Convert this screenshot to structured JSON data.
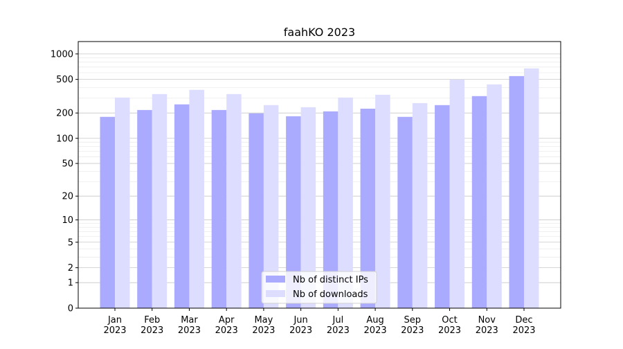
{
  "chart_data": {
    "type": "bar",
    "title": "faahKO 2023",
    "xlabel": "",
    "ylabel": "",
    "yscale": "log(1+y)",
    "ylim": [
      0,
      1400
    ],
    "yticks": [
      0,
      1,
      2,
      5,
      10,
      20,
      50,
      100,
      200,
      500,
      1000
    ],
    "grid": true,
    "legend_position": "lower center",
    "categories": [
      "Jan\n2023",
      "Feb\n2023",
      "Mar\n2023",
      "Apr\n2023",
      "May\n2023",
      "Jun\n2023",
      "Jul\n2023",
      "Aug\n2023",
      "Sep\n2023",
      "Oct\n2023",
      "Nov\n2023",
      "Dec\n2023"
    ],
    "series": [
      {
        "name": "Nb of distinct IPs",
        "color": "#aaaaff",
        "values": [
          180,
          217,
          253,
          217,
          198,
          183,
          209,
          225,
          180,
          248,
          317,
          547
        ]
      },
      {
        "name": "Nb of downloads",
        "color": "#ddddff",
        "values": [
          305,
          335,
          376,
          335,
          248,
          234,
          305,
          329,
          262,
          498,
          436,
          674
        ]
      }
    ]
  }
}
